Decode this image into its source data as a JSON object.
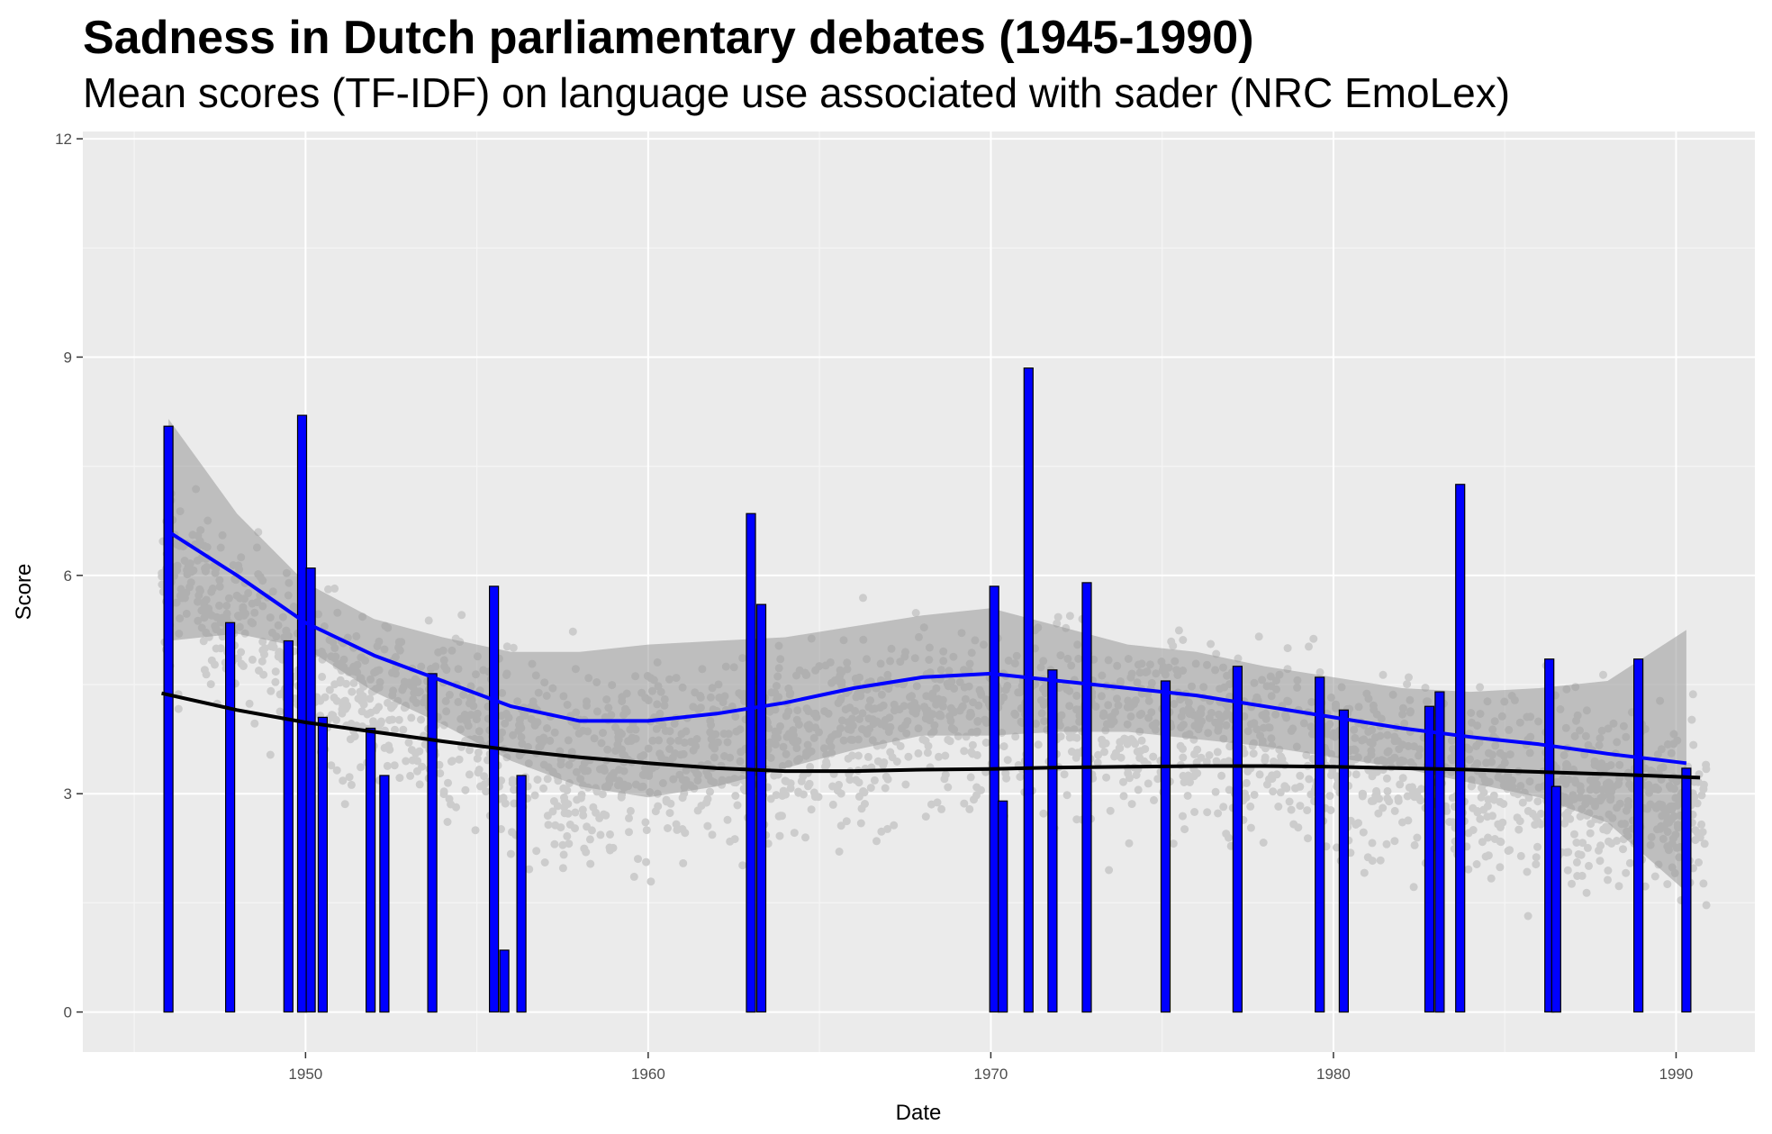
{
  "title": "Sadness in Dutch parliamentary debates (1945-1990)",
  "subtitle": "Mean scores (TF-IDF) on language use associated with sader (NRC EmoLex)",
  "colors": {
    "panel_bg": "#ebebeb",
    "grid_major": "#ffffff",
    "bar_fill": "#0000ff",
    "bar_stroke": "#000000",
    "points": "#cccccc",
    "smooth_blue": "#0000ff",
    "smooth_black": "#000000",
    "ribbon": "#999999"
  },
  "chart_data": {
    "type": "bar",
    "title": "Sadness in Dutch parliamentary debates (1945-1990)",
    "subtitle": "Mean scores (TF-IDF) on language use associated with sader (NRC EmoLex)",
    "xlabel": "Date",
    "ylabel": "Score",
    "xlim": [
      1943.5,
      1992.3
    ],
    "ylim": [
      -0.55,
      12.1
    ],
    "x_ticks": [
      1950,
      1960,
      1970,
      1980,
      1990
    ],
    "y_ticks": [
      0,
      3,
      6,
      9,
      12
    ],
    "grid": true,
    "legend": "none",
    "bars": [
      {
        "x": 1946.0,
        "value": 8.05
      },
      {
        "x": 1947.8,
        "value": 5.35
      },
      {
        "x": 1949.5,
        "value": 5.1
      },
      {
        "x": 1949.9,
        "value": 8.2
      },
      {
        "x": 1950.15,
        "value": 6.1
      },
      {
        "x": 1950.5,
        "value": 4.05
      },
      {
        "x": 1951.9,
        "value": 3.9
      },
      {
        "x": 1952.3,
        "value": 3.25
      },
      {
        "x": 1953.7,
        "value": 4.65
      },
      {
        "x": 1955.5,
        "value": 5.85
      },
      {
        "x": 1955.8,
        "value": 0.85
      },
      {
        "x": 1956.3,
        "value": 3.25
      },
      {
        "x": 1963.0,
        "value": 6.85
      },
      {
        "x": 1963.3,
        "value": 5.6
      },
      {
        "x": 1970.1,
        "value": 5.85
      },
      {
        "x": 1970.35,
        "value": 2.9
      },
      {
        "x": 1971.1,
        "value": 8.85
      },
      {
        "x": 1971.8,
        "value": 4.7
      },
      {
        "x": 1972.8,
        "value": 5.9
      },
      {
        "x": 1975.1,
        "value": 4.55
      },
      {
        "x": 1977.2,
        "value": 4.75
      },
      {
        "x": 1979.6,
        "value": 4.6
      },
      {
        "x": 1980.3,
        "value": 4.15
      },
      {
        "x": 1982.8,
        "value": 4.2
      },
      {
        "x": 1983.1,
        "value": 4.4
      },
      {
        "x": 1983.7,
        "value": 7.25
      },
      {
        "x": 1986.3,
        "value": 4.85
      },
      {
        "x": 1986.5,
        "value": 3.1
      },
      {
        "x": 1988.9,
        "value": 4.85
      },
      {
        "x": 1990.3,
        "value": 3.35
      }
    ],
    "smooth_series": [
      {
        "color": "blue",
        "x": [
          1946,
          1948,
          1950,
          1952,
          1954,
          1956,
          1958,
          1960,
          1962,
          1964,
          1966,
          1968,
          1970,
          1972,
          1974,
          1976,
          1978,
          1980,
          1982,
          1984,
          1986,
          1988,
          1990.3
        ],
        "y": [
          6.6,
          6.0,
          5.35,
          4.9,
          4.55,
          4.2,
          4.0,
          4.0,
          4.1,
          4.25,
          4.45,
          4.6,
          4.65,
          4.55,
          4.45,
          4.35,
          4.2,
          4.05,
          3.9,
          3.78,
          3.68,
          3.55,
          3.42
        ],
        "ci_lower": [
          5.1,
          5.2,
          5.0,
          4.4,
          3.95,
          3.45,
          3.1,
          2.95,
          3.1,
          3.35,
          3.6,
          3.8,
          3.8,
          3.85,
          3.85,
          3.75,
          3.65,
          3.5,
          3.35,
          3.15,
          2.95,
          2.6,
          1.65
        ],
        "ci_upper": [
          8.15,
          6.85,
          5.9,
          5.4,
          5.15,
          4.95,
          4.95,
          5.05,
          5.1,
          5.15,
          5.3,
          5.45,
          5.55,
          5.3,
          5.05,
          4.95,
          4.75,
          4.6,
          4.45,
          4.4,
          4.45,
          4.55,
          5.25
        ]
      },
      {
        "color": "black",
        "x": [
          1945.8,
          1948,
          1950,
          1952,
          1954,
          1956,
          1958,
          1960,
          1962,
          1964,
          1966,
          1968,
          1970,
          1972,
          1974,
          1976,
          1978,
          1980,
          1982,
          1984,
          1986,
          1988,
          1990.7
        ],
        "y": [
          4.38,
          4.15,
          3.98,
          3.85,
          3.72,
          3.6,
          3.5,
          3.42,
          3.35,
          3.31,
          3.31,
          3.33,
          3.34,
          3.36,
          3.37,
          3.38,
          3.38,
          3.37,
          3.35,
          3.33,
          3.3,
          3.27,
          3.22
        ]
      }
    ]
  }
}
